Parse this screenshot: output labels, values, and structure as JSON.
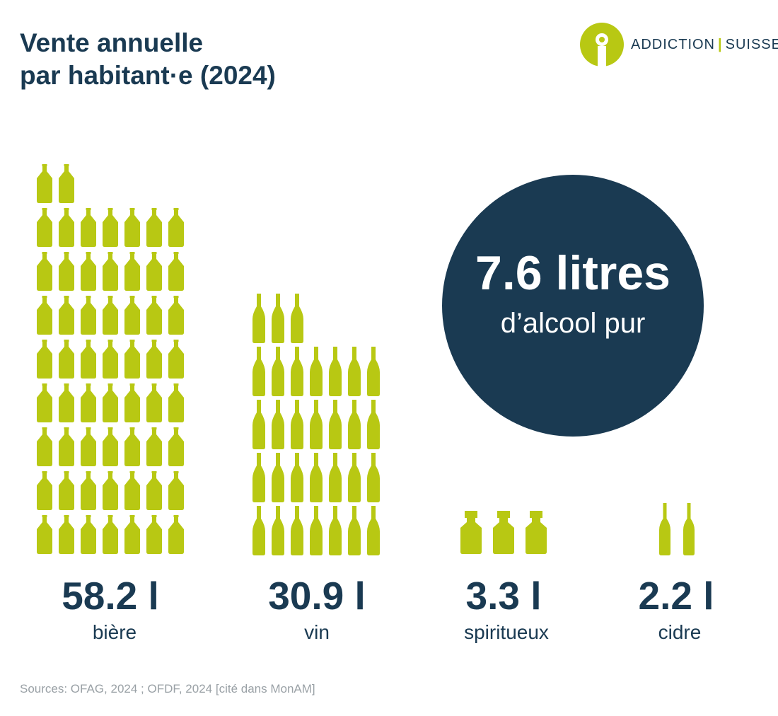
{
  "title": {
    "line1": "Vente annuelle",
    "line2": "par habitant·e (2024)"
  },
  "logo": {
    "left": "ADDICTION",
    "separator": "|",
    "right": "SUISSE"
  },
  "highlight": {
    "value": "7.6 litres",
    "unit": "d’alcool pur"
  },
  "colors": {
    "navy": "#1a3a52",
    "lime": "#b8c813",
    "grey": "#9aa1a6"
  },
  "chart_data": {
    "type": "pictogram",
    "unit": "l",
    "categories": [
      "bière",
      "vin",
      "spiritueux",
      "cidre"
    ],
    "values": [
      58.2,
      30.9,
      3.3,
      2.2
    ],
    "value_labels": [
      "58.2 l",
      "30.9 l",
      "3.3 l",
      "2.2 l"
    ],
    "icon_counts": [
      58,
      31,
      3,
      2
    ],
    "icons": [
      "beer-bottle-icon",
      "wine-bottle-icon",
      "spirits-bottle-icon",
      "cider-bottle-icon"
    ]
  },
  "source": "Sources: OFAG, 2024 ; OFDF, 2024 [cité dans MonAM]"
}
